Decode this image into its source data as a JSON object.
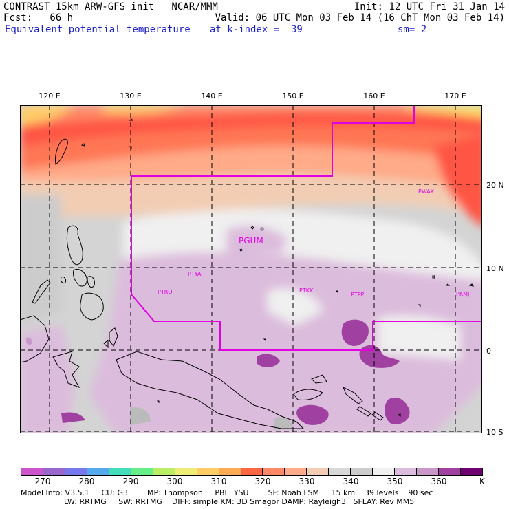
{
  "header": {
    "line1_left": "CONTRAST 15km ARW-GFS init   NCAR/MMM",
    "line1_right": "Init: 12 UTC Fri 31 Jan 14",
    "line2_left": "Fcst:   66 h",
    "line2_right": "Valid: 06 UTC Mon 03 Feb 14 (16 ChT Mon 03 Feb 14)",
    "line3_field": "Equivalent potential temperature",
    "line3_level": "at k-index =  39",
    "line3_sm": "sm= 2"
  },
  "map": {
    "lon_labels": [
      "120 E",
      "130 E",
      "140 E",
      "150 E",
      "160 E",
      "170 E"
    ],
    "lat_labels": [
      "20 N",
      "10 N",
      "0",
      "10 S"
    ],
    "stations": [
      {
        "id": "PGUM",
        "big": true
      },
      {
        "id": "PTYA"
      },
      {
        "id": "PTRO"
      },
      {
        "id": "PTKK"
      },
      {
        "id": "PTPP"
      },
      {
        "id": "PWAK"
      },
      {
        "id": "PKMJ"
      }
    ]
  },
  "colorbar": {
    "unit": "K",
    "labels": [
      "270",
      "280",
      "290",
      "300",
      "310",
      "320",
      "330",
      "340",
      "350",
      "360"
    ],
    "colors": [
      "#cc55cc",
      "#9966cc",
      "#7777ee",
      "#55aaee",
      "#44ddbb",
      "#66ee88",
      "#bbee66",
      "#eeee77",
      "#ffcc66",
      "#ffaa55",
      "#ff6644",
      "#ff8866",
      "#ffaa88",
      "#f2cdb4",
      "#d8d8d8",
      "#cccccc",
      "#f0f0f0",
      "#dcbcdc",
      "#c899c8",
      "#a040a0",
      "#700070"
    ]
  },
  "footer": {
    "line1": "Model Info: V3.5.1     CU: G3        MP: Thompson     PBL: YSU        SF: Noah LSM     15 km    39 levels    90 sec",
    "line2": "                  LW: RRTMG     SW: RRTMG    DIFF: simple KM: 3D Smagor DAMP: Rayleigh3   SFLAY: Rev MM5"
  }
}
